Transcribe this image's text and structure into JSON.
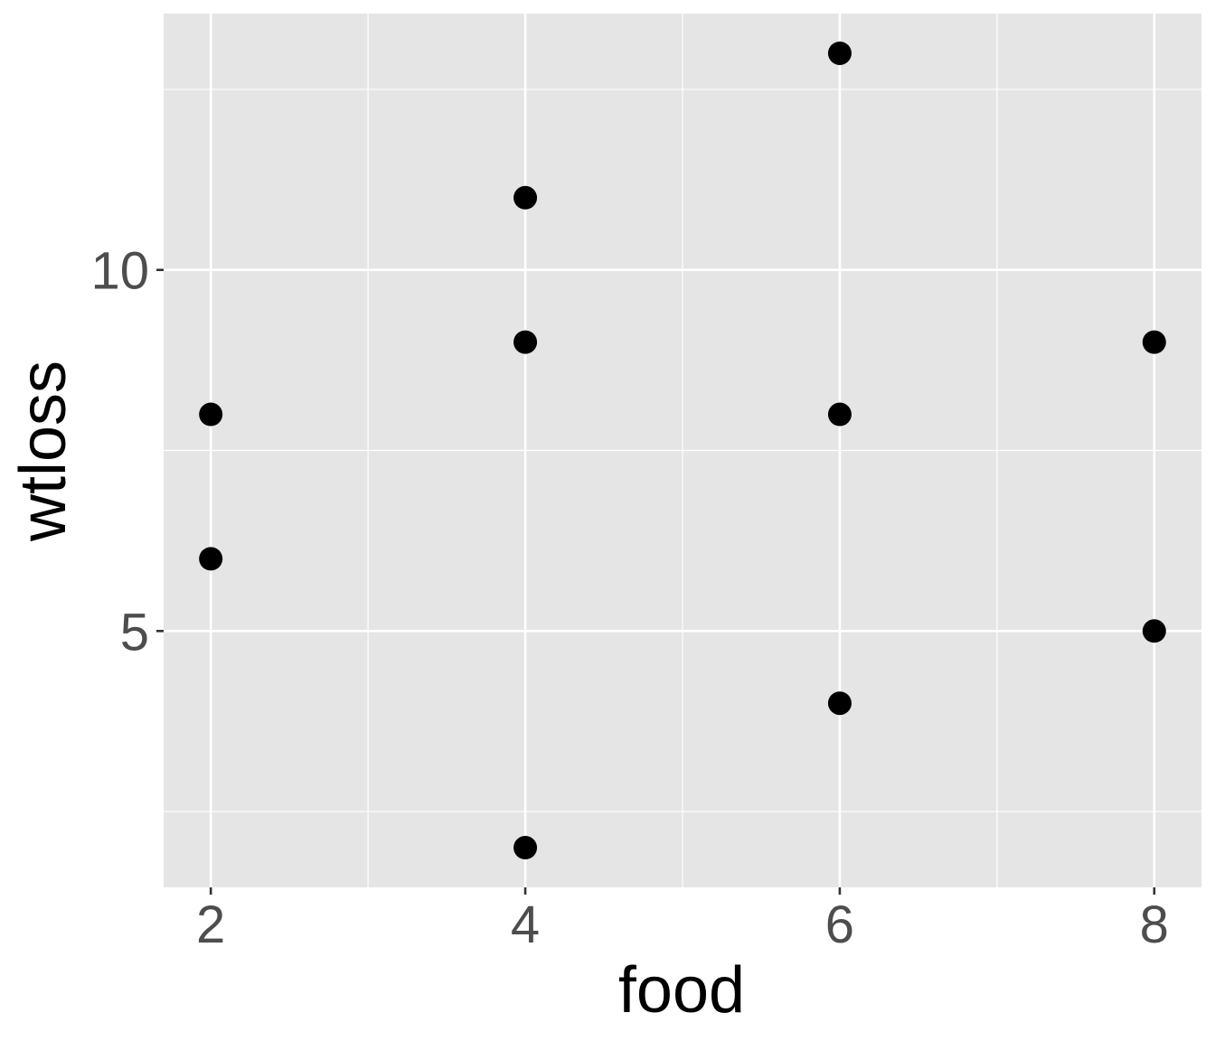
{
  "chart_data": {
    "type": "scatter",
    "title": "",
    "xlabel": "food",
    "ylabel": "wtloss",
    "xlim": [
      1.7,
      8.3
    ],
    "ylim": [
      1.45,
      13.55
    ],
    "x_ticks": [
      2,
      4,
      6,
      8
    ],
    "x_tick_labels": [
      "2",
      "4",
      "6",
      "8"
    ],
    "x_minor_ticks": [
      3,
      5,
      7
    ],
    "y_ticks": [
      5,
      10
    ],
    "y_tick_labels": [
      "5",
      "10"
    ],
    "y_minor_ticks": [
      2.5,
      7.5,
      12.5
    ],
    "grid": true,
    "legend": "none",
    "points": [
      {
        "x": 2,
        "y": 8
      },
      {
        "x": 2,
        "y": 6
      },
      {
        "x": 4,
        "y": 11
      },
      {
        "x": 4,
        "y": 9
      },
      {
        "x": 4,
        "y": 2
      },
      {
        "x": 6,
        "y": 13
      },
      {
        "x": 6,
        "y": 8
      },
      {
        "x": 6,
        "y": 4
      },
      {
        "x": 8,
        "y": 9
      },
      {
        "x": 8,
        "y": 5
      }
    ],
    "colors": {
      "panel": "#e5e5e5",
      "grid": "#ffffff",
      "point": "#000000",
      "tick_text": "#4d4d4d",
      "title_text": "#000000"
    }
  }
}
